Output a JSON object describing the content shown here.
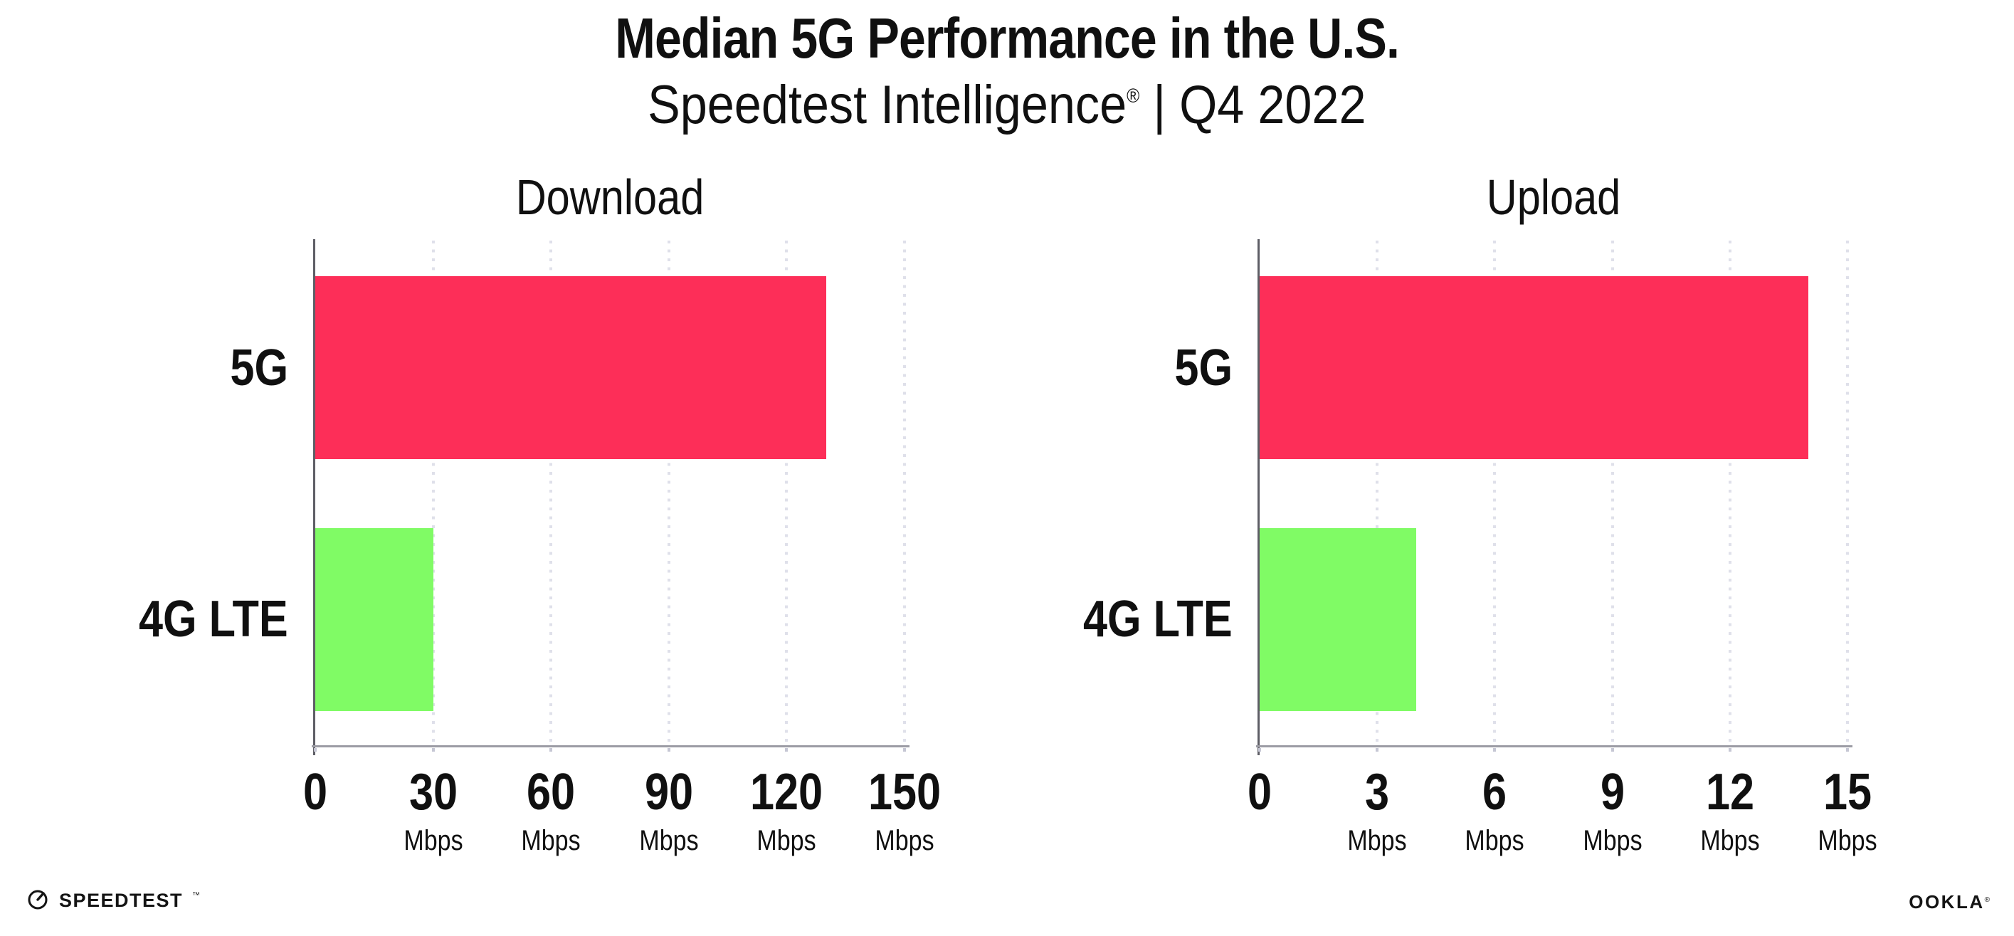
{
  "header": {
    "title": "Median 5G Performance in the U.S.",
    "subtitle_brand": "Speedtest Intelligence",
    "subtitle_reg": "®",
    "subtitle_rest": " | Q4 2022"
  },
  "footer": {
    "speedtest_label": "SPEEDTEST",
    "speedtest_tm": "™",
    "ookla_label": "OOKLA",
    "ookla_reg": "®"
  },
  "colors": {
    "bar_5g": "#fd2e58",
    "bar_4g_lte": "#80fb65",
    "gridline": "#dfe0ea",
    "y_axis": "#5e5e66",
    "x_axis": "#9c9ca4",
    "text": "#101010"
  },
  "chart_data": [
    {
      "type": "bar",
      "orientation": "horizontal",
      "title": "Download",
      "categories": [
        "5G",
        "4G LTE"
      ],
      "values": [
        130,
        30
      ],
      "unit": "Mbps",
      "xlim": [
        0,
        150
      ],
      "ticks": [
        0,
        30,
        60,
        90,
        120,
        150
      ],
      "bar_colors": [
        "#fd2e58",
        "#80fb65"
      ],
      "grid": "dotted-vertical",
      "legend": "none"
    },
    {
      "type": "bar",
      "orientation": "horizontal",
      "title": "Upload",
      "categories": [
        "5G",
        "4G LTE"
      ],
      "values": [
        14,
        4
      ],
      "unit": "Mbps",
      "xlim": [
        0,
        15
      ],
      "ticks": [
        0,
        3,
        6,
        9,
        12,
        15
      ],
      "bar_colors": [
        "#fd2e58",
        "#80fb65"
      ],
      "grid": "dotted-vertical",
      "legend": "none"
    }
  ]
}
